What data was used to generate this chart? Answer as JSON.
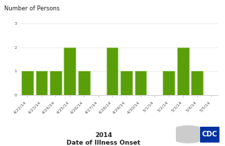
{
  "dates": [
    "4/22/14",
    "4/23/14",
    "4/24/14",
    "4/25/14",
    "4/26/14",
    "4/27/14",
    "4/28/14",
    "4/29/14",
    "4/30/14",
    "5/1/14",
    "5/2/14",
    "5/3/14",
    "5/4/14",
    "5/5/14"
  ],
  "values": [
    1,
    1,
    1,
    2,
    1,
    0,
    2,
    1,
    1,
    0,
    1,
    2,
    1,
    0
  ],
  "bar_color": "#5a9e0a",
  "bar_edge_color": "#7bbf2a",
  "bar_linewidth": 0.4,
  "ylabel": "Number of Persons",
  "xlabel_line1": "2014",
  "xlabel_line2": "Date of Illness Onset",
  "ylim": [
    0,
    3
  ],
  "yticks": [
    0,
    1,
    2,
    3
  ],
  "background_color": "#ffffff",
  "ylabel_fontsize": 6,
  "xlabel_fontsize": 6.5,
  "tick_fontsize": 4.5,
  "spine_color": "#bbbbbb",
  "cdc_box_color": "#0033a0",
  "cdc_text_color": "#ffffff"
}
